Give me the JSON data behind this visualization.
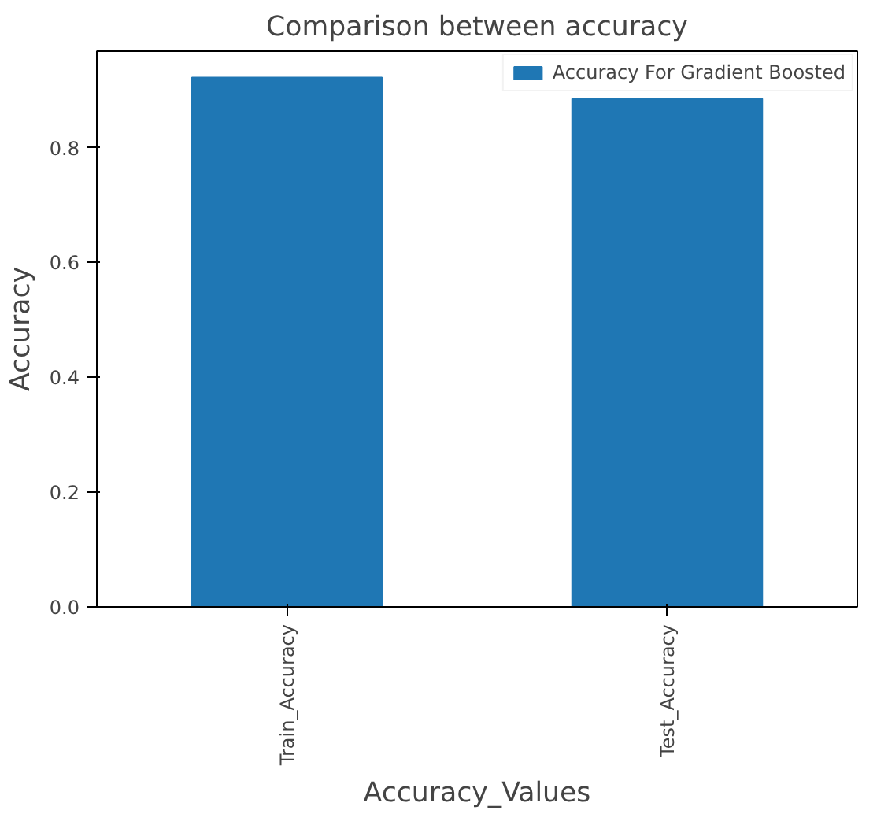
{
  "chart_data": {
    "type": "bar",
    "title": "Comparison between accuracy",
    "xlabel": "Accuracy_Values",
    "ylabel": "Accuracy",
    "categories": [
      "Train_Accuracy",
      "Test_Accuracy"
    ],
    "series": [
      {
        "name": "Accuracy For Gradient Boosted",
        "color": "#1f77b4",
        "values": [
          0.922,
          0.885
        ]
      }
    ],
    "ylim": [
      0,
      0.968
    ],
    "yticks": [
      {
        "value": 0,
        "label": "0.0"
      },
      {
        "value": 0.2,
        "label": "0.2"
      },
      {
        "value": 0.4,
        "label": "0.4"
      },
      {
        "value": 0.6,
        "label": "0.6"
      },
      {
        "value": 0.8,
        "label": "0.8"
      }
    ],
    "grid": false,
    "legend": "top right"
  }
}
